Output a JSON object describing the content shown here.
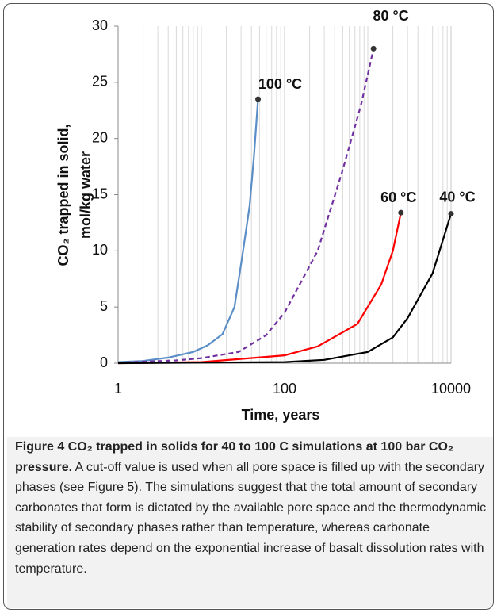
{
  "chart_data": {
    "type": "line",
    "ylabel": [
      "CO₂ trapped in solid,",
      "mol/kg water"
    ],
    "xlabel": "Time, years",
    "xscale": "log",
    "xlim": [
      1,
      10000
    ],
    "xticks": [
      1,
      100,
      10000
    ],
    "ylim": [
      0,
      30
    ],
    "yticks": [
      0,
      5,
      10,
      15,
      20,
      25,
      30
    ],
    "grid": "x-minor",
    "series": [
      {
        "name": "100 °C",
        "color": "#5b8ec6",
        "dash": false,
        "x": [
          1,
          2,
          4,
          8,
          12,
          18,
          25,
          31,
          38,
          43,
          48
        ],
        "values": [
          0.1,
          0.2,
          0.5,
          1.0,
          1.6,
          2.6,
          5,
          9.5,
          14,
          18.5,
          23.5
        ]
      },
      {
        "name": "80 °C",
        "color": "#7030a0",
        "dash": true,
        "x": [
          1,
          5,
          10,
          28,
          60,
          100,
          250,
          490,
          830,
          1170
        ],
        "values": [
          0.05,
          0.25,
          0.45,
          1,
          2.5,
          4.5,
          10,
          17,
          23,
          28
        ]
      },
      {
        "name": "60 °C",
        "color": "#ff0000",
        "dash": false,
        "x": [
          1,
          10,
          100,
          250,
          750,
          1450,
          2000,
          2500
        ],
        "values": [
          0,
          0.1,
          0.7,
          1.5,
          3.5,
          7,
          10,
          13.4
        ]
      },
      {
        "name": "40 °C",
        "color": "#000000",
        "dash": false,
        "x": [
          1,
          100,
          300,
          1000,
          2000,
          3000,
          6000,
          10000
        ],
        "values": [
          0,
          0.1,
          0.3,
          1,
          2.3,
          4,
          8,
          13.3
        ]
      }
    ]
  },
  "caption": {
    "title": "Figure 4 CO₂ trapped in solids for 40 to 100 C simulations at 100 bar CO₂ pressure.",
    "text": "A cut-off value is used when all pore space is filled up with the secondary phases (see Figure 5). The simulations suggest that the total amount of secondary carbonates that form is dictated by the available pore space and the thermodynamic stability of secondary phases rather than temperature, whereas carbonate generation rates depend on the exponential increase of basalt dissolution rates with temperature."
  }
}
